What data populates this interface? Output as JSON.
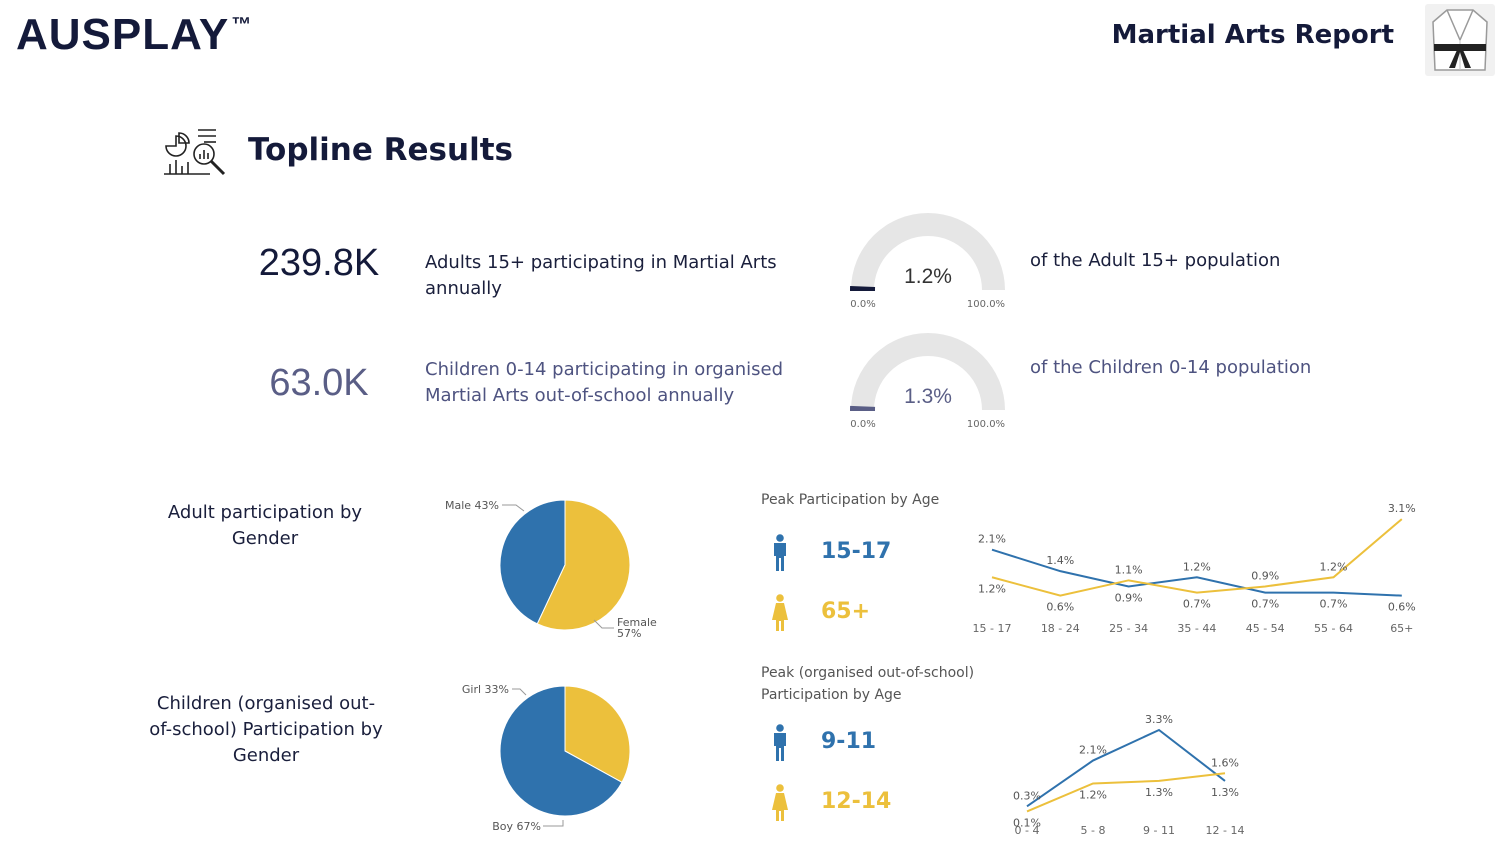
{
  "header": {
    "logo": "AUSPLAY",
    "logo_mark": "™",
    "report_title": "Martial Arts Report",
    "icon": "martial-arts-gi-icon"
  },
  "topline": {
    "title": "Topline Results",
    "icon": "analytics-icon"
  },
  "kpis": [
    {
      "value": "239.8K",
      "description": "Adults 15+ participating in Martial Arts annually",
      "gauge_value": 1.2,
      "gauge_label": "1.2%",
      "gauge_min": "0.0%",
      "gauge_max": "100.0%",
      "population_text": "of the Adult 15+ population"
    },
    {
      "value": "63.0K",
      "description": "Children 0-14 participating in organised Martial Arts out-of-school annually",
      "gauge_value": 1.3,
      "gauge_label": "1.3%",
      "gauge_min": "0.0%",
      "gauge_max": "100.0%",
      "population_text": "of the Children 0-14 population"
    }
  ],
  "adult_gender": {
    "label": "Adult participation by Gender",
    "male_label": "Male 43%",
    "female_label": "Female",
    "female_pct": "57%"
  },
  "child_gender": {
    "label": "Children (organised out-of-school) Participation by Gender",
    "girl_label": "Girl 33%",
    "boy_label": "Boy 67%"
  },
  "adult_peak": {
    "title": "Peak Participation by Age",
    "male_peak": "15-17",
    "female_peak": "65+"
  },
  "child_peak": {
    "title": "Peak (organised out-of-school) Participation by Age",
    "male_peak": "9-11",
    "female_peak": "12-14"
  },
  "colors": {
    "male": "#2f72ad",
    "female": "#ecc03c",
    "navy": "#141a3a",
    "gauge_track": "#e6e6e6"
  },
  "chart_data": [
    {
      "type": "pie",
      "title": "Adult participation by Gender",
      "categories": [
        "Male",
        "Female"
      ],
      "values": [
        43,
        57
      ]
    },
    {
      "type": "pie",
      "title": "Children (organised out-of-school) Participation by Gender",
      "categories": [
        "Girl",
        "Boy"
      ],
      "values": [
        33,
        67
      ]
    },
    {
      "type": "line",
      "title": "Peak Participation by Age",
      "categories": [
        "15 - 17",
        "18 - 24",
        "25 - 34",
        "35 - 44",
        "45 - 54",
        "55 - 64",
        "65+"
      ],
      "series": [
        {
          "name": "Male",
          "values": [
            2.1,
            1.4,
            0.9,
            1.2,
            0.7,
            0.7,
            0.6
          ]
        },
        {
          "name": "Female",
          "values": [
            1.2,
            0.6,
            1.1,
            0.7,
            0.9,
            1.2,
            3.1
          ]
        }
      ],
      "ylim": [
        0,
        3.3
      ]
    },
    {
      "type": "line",
      "title": "Peak (organised out-of-school) Participation by Age",
      "categories": [
        "0 - 4",
        "5 - 8",
        "9 - 11",
        "12 - 14"
      ],
      "series": [
        {
          "name": "Male",
          "values": [
            0.3,
            2.1,
            3.3,
            1.3
          ]
        },
        {
          "name": "Female",
          "values": [
            0.1,
            1.2,
            1.3,
            1.6
          ]
        }
      ],
      "ylim": [
        0,
        3.3
      ]
    }
  ]
}
